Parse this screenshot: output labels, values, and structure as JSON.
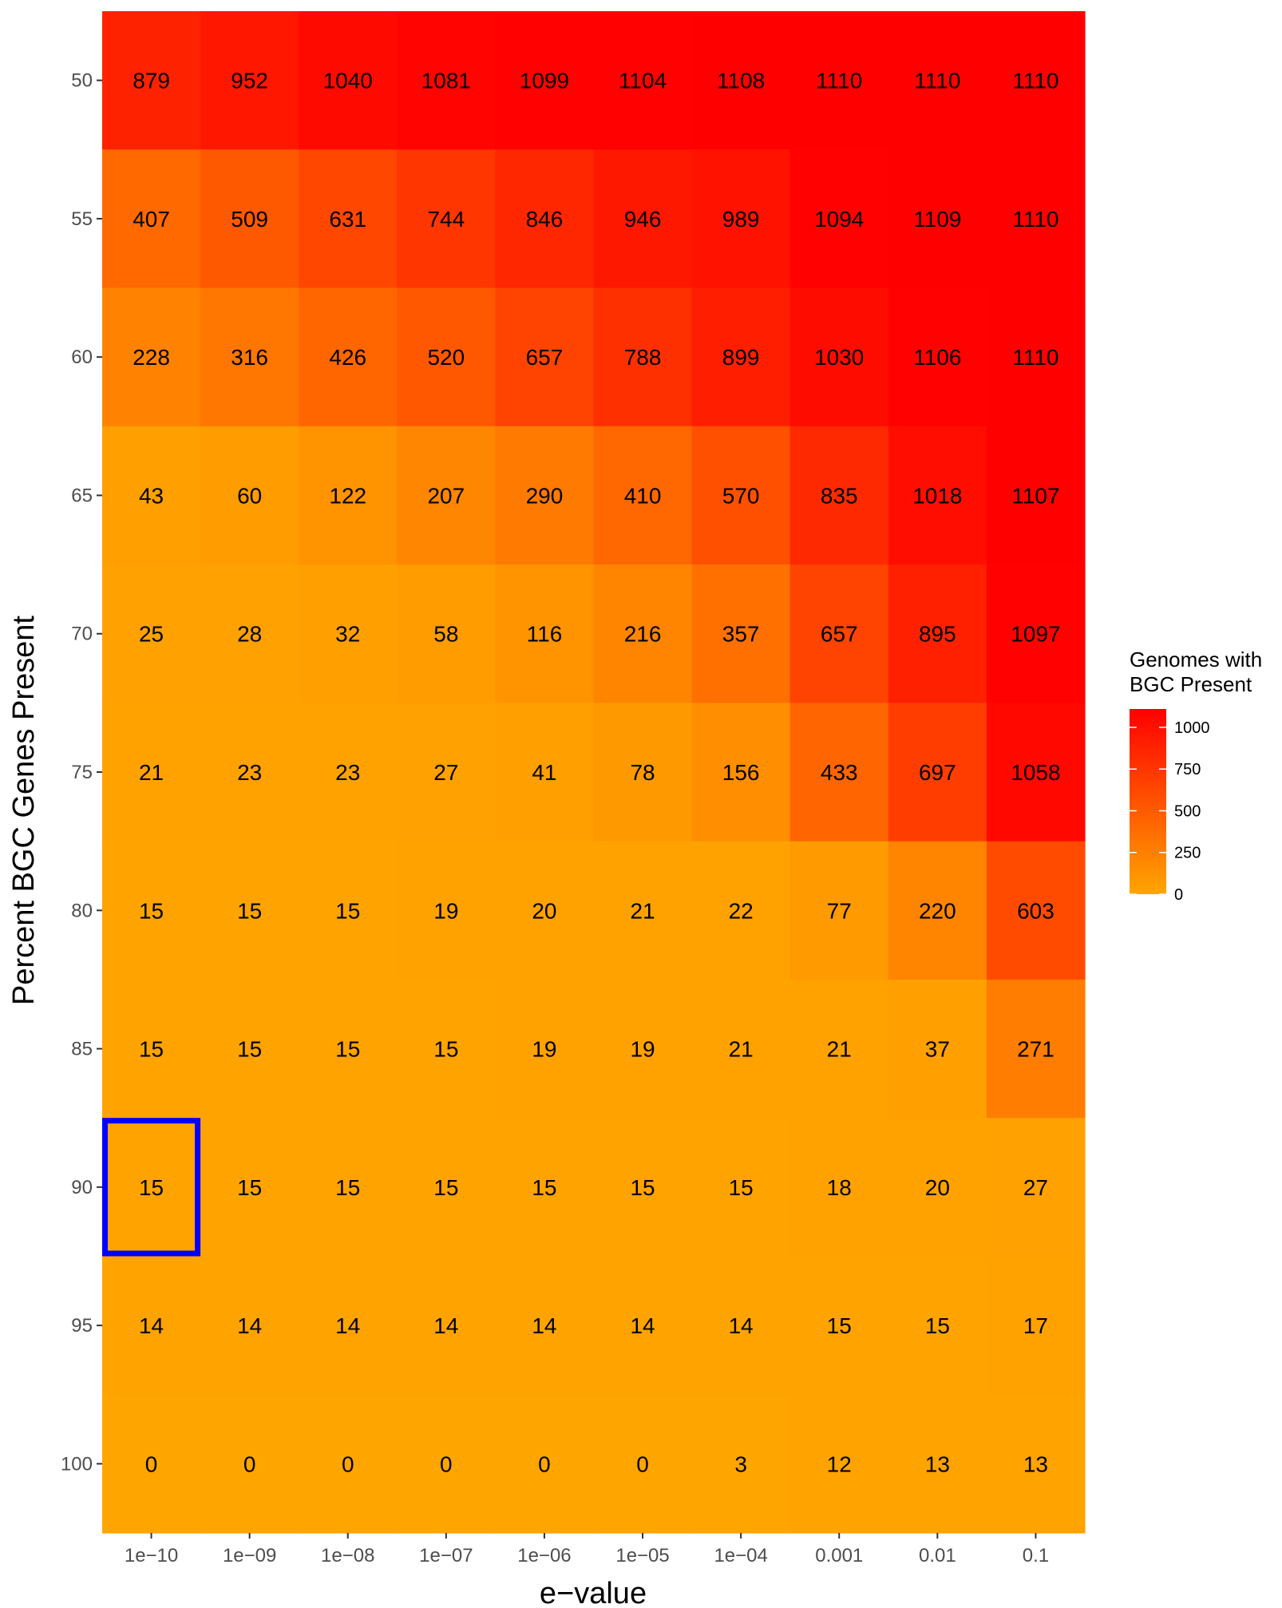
{
  "chart_data": {
    "type": "heatmap",
    "xlabel": "e−value",
    "ylabel": "Percent BGC Genes Present",
    "x_categories": [
      "1e−10",
      "1e−09",
      "1e−08",
      "1e−07",
      "1e−06",
      "1e−05",
      "1e−04",
      "0.001",
      "0.01",
      "0.1"
    ],
    "y_categories": [
      "50",
      "55",
      "60",
      "65",
      "70",
      "75",
      "80",
      "85",
      "90",
      "95",
      "100"
    ],
    "values": [
      [
        879,
        952,
        1040,
        1081,
        1099,
        1104,
        1108,
        1110,
        1110,
        1110
      ],
      [
        407,
        509,
        631,
        744,
        846,
        946,
        989,
        1094,
        1109,
        1110
      ],
      [
        228,
        316,
        426,
        520,
        657,
        788,
        899,
        1030,
        1106,
        1110
      ],
      [
        43,
        60,
        122,
        207,
        290,
        410,
        570,
        835,
        1018,
        1107
      ],
      [
        25,
        28,
        32,
        58,
        116,
        216,
        357,
        657,
        895,
        1097
      ],
      [
        21,
        23,
        23,
        27,
        41,
        78,
        156,
        433,
        697,
        1058
      ],
      [
        15,
        15,
        15,
        19,
        20,
        21,
        22,
        77,
        220,
        603
      ],
      [
        15,
        15,
        15,
        15,
        19,
        19,
        21,
        21,
        37,
        271
      ],
      [
        15,
        15,
        15,
        15,
        15,
        15,
        15,
        18,
        20,
        27
      ],
      [
        14,
        14,
        14,
        14,
        14,
        14,
        14,
        15,
        15,
        17
      ],
      [
        0,
        0,
        0,
        0,
        0,
        0,
        3,
        12,
        13,
        13
      ]
    ],
    "color_scale": {
      "low": "#FFA500",
      "high": "#FF0000",
      "min": 0,
      "max": 1110
    },
    "legend": {
      "title_lines": [
        "Genomes with",
        "BGC Present"
      ],
      "ticks": [
        0,
        250,
        500,
        750,
        1000
      ],
      "placement": "right"
    },
    "highlight": {
      "x": "1e−10",
      "y": "90",
      "color": "#0000FF"
    }
  }
}
